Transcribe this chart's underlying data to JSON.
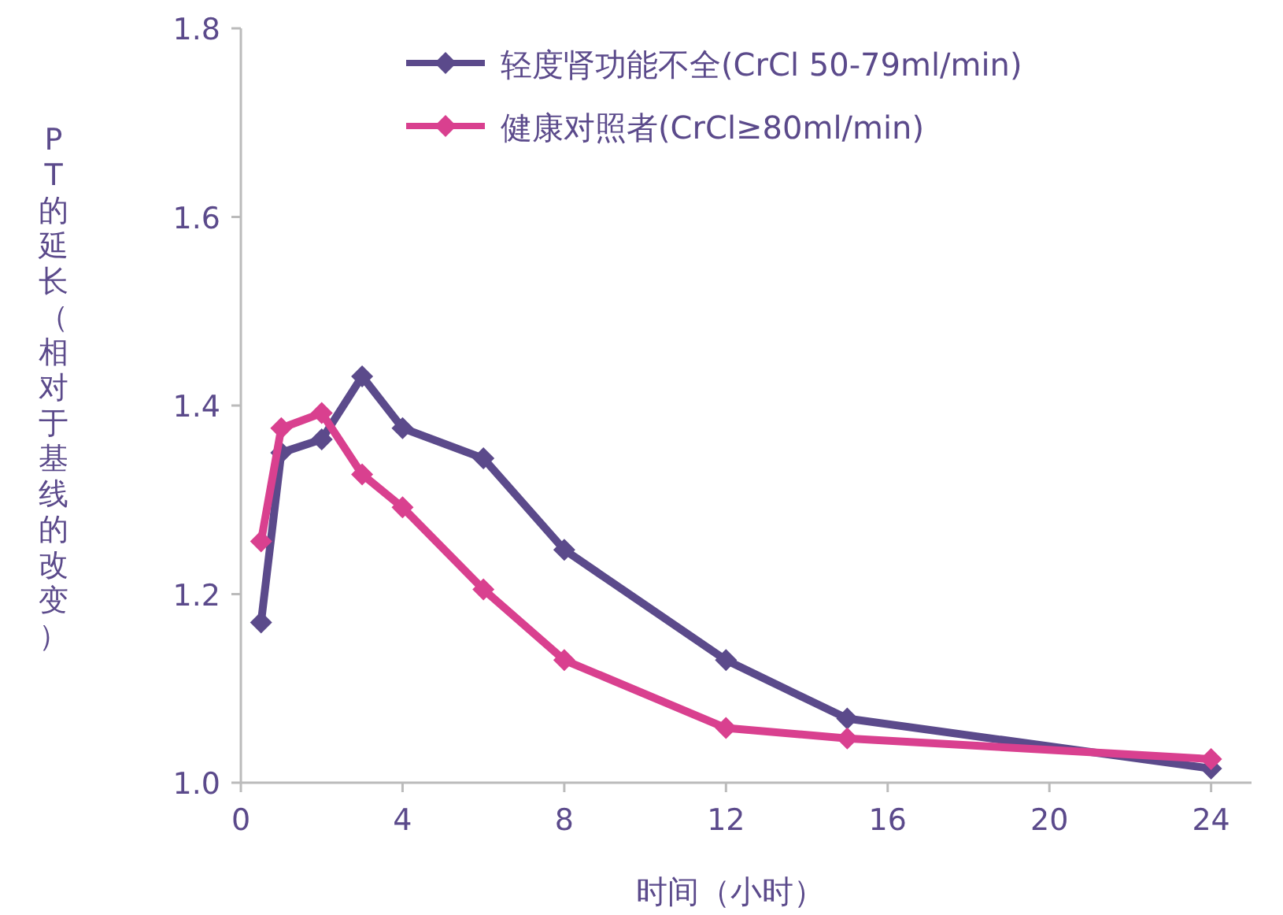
{
  "chart_data": {
    "type": "line",
    "xlabel": "时间（小时）",
    "ylabel": "PT的延长（相对于基线的改变）",
    "xlim": [
      0,
      25
    ],
    "xticks": [
      0,
      4,
      8,
      12,
      16,
      20,
      24
    ],
    "ylim": [
      1.0,
      1.8
    ],
    "yticks": [
      {
        "value": 1.0,
        "label": "1.0"
      },
      {
        "value": 1.2,
        "label": "1.2"
      },
      {
        "value": 1.4,
        "label": "1.4"
      },
      {
        "value": 1.6,
        "label": "1.6"
      },
      {
        "value": 1.8,
        "label": "1.8"
      }
    ],
    "grid": false,
    "legend": "top right",
    "marker": "diamond",
    "line_style": "solid",
    "series": [
      {
        "name": "轻度肾功能不全(CrCl 50-79ml/min)",
        "color": "#5b4a8b",
        "x": [
          0.5,
          1,
          2,
          3,
          4,
          6,
          8,
          12,
          15,
          24
        ],
        "values": [
          1.17,
          1.35,
          1.364,
          1.431,
          1.376,
          1.344,
          1.247,
          1.13,
          1.068,
          1.015
        ]
      },
      {
        "name": "健康对照者(CrCl≥80ml/min)",
        "color": "#d9408f",
        "x": [
          0.5,
          1,
          2,
          3,
          4,
          6,
          8,
          12,
          15,
          24
        ],
        "values": [
          1.256,
          1.376,
          1.392,
          1.327,
          1.292,
          1.205,
          1.13,
          1.058,
          1.047,
          1.025
        ]
      }
    ]
  }
}
